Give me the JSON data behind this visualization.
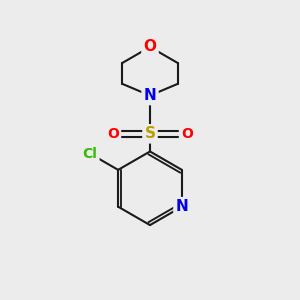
{
  "background_color": "#ececec",
  "bond_color": "#1a1a1a",
  "bond_width": 1.5,
  "atom_colors": {
    "O": "#ff0000",
    "N": "#0000ee",
    "S": "#b8a000",
    "Cl": "#33bb00",
    "C": "#1a1a1a"
  },
  "font_size": 9,
  "fig_size": [
    3.0,
    3.0
  ],
  "dpi": 100
}
